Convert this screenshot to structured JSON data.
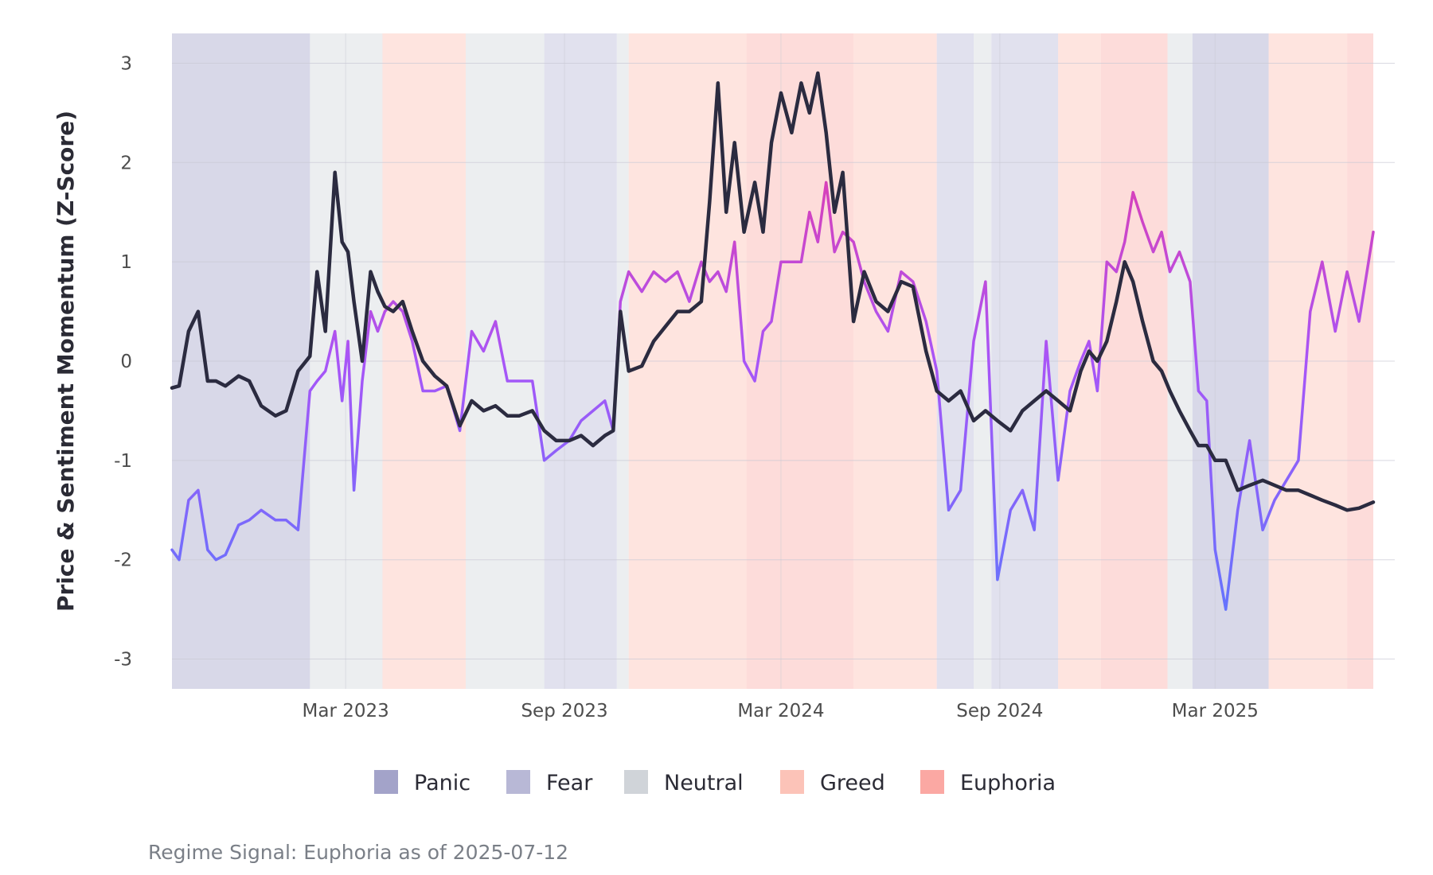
{
  "chart_data": {
    "type": "line",
    "title": "",
    "xlabel": "",
    "ylabel": "Price & Sentiment Momentum (Z-Score)",
    "ylim": [
      -3.3,
      3.3
    ],
    "xlim": [
      "2022-10-06",
      "2025-07-12"
    ],
    "y_ticks": [
      3,
      2,
      1,
      0,
      -1,
      -2,
      -3
    ],
    "y_tick_labels": [
      "3",
      "2",
      "1",
      "0",
      "-1",
      "-2",
      "-3"
    ],
    "x_ticks": [
      "2023-03-01",
      "2023-09-01",
      "2024-03-01",
      "2024-09-01",
      "2025-03-01"
    ],
    "x_tick_labels": [
      "Mar 2023",
      "Sep 2023",
      "Mar 2024",
      "Sep 2024",
      "Mar 2025"
    ],
    "grid": true,
    "legend_position": "bottom",
    "legend": [
      {
        "label": "Panic",
        "color": "#a3a3c9"
      },
      {
        "label": "Fear",
        "color": "#b8b8d6"
      },
      {
        "label": "Neutral",
        "color": "#d0d4d9"
      },
      {
        "label": "Greed",
        "color": "#fcc3b8"
      },
      {
        "label": "Euphoria",
        "color": "#fba8a3"
      }
    ],
    "caption": "Regime Signal: Euphoria as of 2025-07-12",
    "regime_bands": [
      {
        "start": "2022-10-06",
        "end": "2023-01-30",
        "regime": "Panic"
      },
      {
        "start": "2023-01-30",
        "end": "2023-04-01",
        "regime": "Neutral"
      },
      {
        "start": "2023-04-01",
        "end": "2023-06-10",
        "regime": "Greed"
      },
      {
        "start": "2023-06-10",
        "end": "2023-08-15",
        "regime": "Neutral"
      },
      {
        "start": "2023-08-15",
        "end": "2023-10-15",
        "regime": "Fear"
      },
      {
        "start": "2023-10-15",
        "end": "2023-10-25",
        "regime": "Neutral"
      },
      {
        "start": "2023-10-25",
        "end": "2024-02-01",
        "regime": "Greed"
      },
      {
        "start": "2024-02-01",
        "end": "2024-05-01",
        "regime": "Euphoria"
      },
      {
        "start": "2024-05-01",
        "end": "2024-07-10",
        "regime": "Greed"
      },
      {
        "start": "2024-07-10",
        "end": "2024-08-10",
        "regime": "Fear"
      },
      {
        "start": "2024-08-10",
        "end": "2024-08-25",
        "regime": "Neutral"
      },
      {
        "start": "2024-08-25",
        "end": "2024-10-20",
        "regime": "Fear"
      },
      {
        "start": "2024-10-20",
        "end": "2024-11-25",
        "regime": "Greed"
      },
      {
        "start": "2024-11-25",
        "end": "2025-01-20",
        "regime": "Euphoria"
      },
      {
        "start": "2025-01-20",
        "end": "2025-02-10",
        "regime": "Neutral"
      },
      {
        "start": "2025-02-10",
        "end": "2025-04-15",
        "regime": "Panic"
      },
      {
        "start": "2025-04-15",
        "end": "2025-06-20",
        "regime": "Greed"
      },
      {
        "start": "2025-06-20",
        "end": "2025-07-12",
        "regime": "Euphoria"
      }
    ],
    "series": [
      {
        "key": "price",
        "color": "#2b2b40",
        "x": [
          "2022-10-06",
          "2022-10-12",
          "2022-10-20",
          "2022-10-28",
          "2022-11-05",
          "2022-11-12",
          "2022-11-20",
          "2022-12-01",
          "2022-12-10",
          "2022-12-20",
          "2023-01-01",
          "2023-01-10",
          "2023-01-20",
          "2023-01-30",
          "2023-02-05",
          "2023-02-12",
          "2023-02-20",
          "2023-02-26",
          "2023-03-03",
          "2023-03-08",
          "2023-03-15",
          "2023-03-22",
          "2023-03-28",
          "2023-04-03",
          "2023-04-10",
          "2023-04-18",
          "2023-04-26",
          "2023-05-05",
          "2023-05-15",
          "2023-05-25",
          "2023-06-05",
          "2023-06-15",
          "2023-06-25",
          "2023-07-05",
          "2023-07-15",
          "2023-07-25",
          "2023-08-05",
          "2023-08-15",
          "2023-08-25",
          "2023-09-05",
          "2023-09-15",
          "2023-09-25",
          "2023-10-05",
          "2023-10-12",
          "2023-10-18",
          "2023-10-25",
          "2023-11-05",
          "2023-11-15",
          "2023-11-25",
          "2023-12-05",
          "2023-12-15",
          "2023-12-25",
          "2024-01-01",
          "2024-01-08",
          "2024-01-15",
          "2024-01-22",
          "2024-01-30",
          "2024-02-08",
          "2024-02-15",
          "2024-02-22",
          "2024-03-01",
          "2024-03-10",
          "2024-03-18",
          "2024-03-25",
          "2024-04-01",
          "2024-04-08",
          "2024-04-15",
          "2024-04-22",
          "2024-05-01",
          "2024-05-10",
          "2024-05-20",
          "2024-05-30",
          "2024-06-10",
          "2024-06-20",
          "2024-07-01",
          "2024-07-10",
          "2024-07-20",
          "2024-07-30",
          "2024-08-10",
          "2024-08-20",
          "2024-08-30",
          "2024-09-10",
          "2024-09-20",
          "2024-09-30",
          "2024-10-10",
          "2024-10-20",
          "2024-10-30",
          "2024-11-08",
          "2024-11-15",
          "2024-11-22",
          "2024-11-30",
          "2024-12-08",
          "2024-12-15",
          "2024-12-22",
          "2024-12-30",
          "2025-01-08",
          "2025-01-15",
          "2025-01-22",
          "2025-01-30",
          "2025-02-08",
          "2025-02-15",
          "2025-02-22",
          "2025-03-01",
          "2025-03-10",
          "2025-03-20",
          "2025-03-30",
          "2025-04-10",
          "2025-04-20",
          "2025-04-30",
          "2025-05-10",
          "2025-05-20",
          "2025-05-30",
          "2025-06-10",
          "2025-06-20",
          "2025-06-30",
          "2025-07-12"
        ],
        "y": [
          -0.27,
          -0.25,
          0.3,
          0.5,
          -0.2,
          -0.2,
          -0.25,
          -0.15,
          -0.2,
          -0.45,
          -0.55,
          -0.5,
          -0.1,
          0.05,
          0.9,
          0.3,
          1.9,
          1.2,
          1.1,
          0.6,
          0.0,
          0.9,
          0.7,
          0.55,
          0.5,
          0.6,
          0.3,
          0.0,
          -0.15,
          -0.25,
          -0.65,
          -0.4,
          -0.5,
          -0.45,
          -0.55,
          -0.55,
          -0.5,
          -0.7,
          -0.8,
          -0.8,
          -0.75,
          -0.85,
          -0.75,
          -0.7,
          0.5,
          -0.1,
          -0.05,
          0.2,
          0.35,
          0.5,
          0.5,
          0.6,
          1.6,
          2.8,
          1.5,
          2.2,
          1.3,
          1.8,
          1.3,
          2.2,
          2.7,
          2.3,
          2.8,
          2.5,
          2.9,
          2.3,
          1.5,
          1.9,
          0.4,
          0.9,
          0.6,
          0.5,
          0.8,
          0.75,
          0.1,
          -0.3,
          -0.4,
          -0.3,
          -0.6,
          -0.5,
          -0.6,
          -0.7,
          -0.5,
          -0.4,
          -0.3,
          -0.4,
          -0.5,
          -0.1,
          0.1,
          0.0,
          0.2,
          0.6,
          1.0,
          0.8,
          0.4,
          0.0,
          -0.1,
          -0.3,
          -0.5,
          -0.7,
          -0.85,
          -0.85,
          -1.0,
          -1.0,
          -1.3,
          -1.25,
          -1.2,
          -1.25,
          -1.3,
          -1.3,
          -1.35,
          -1.4,
          -1.45,
          -1.5,
          -1.48,
          -1.42
        ]
      },
      {
        "key": "sentiment",
        "color": "#a855f7",
        "x": [
          "2022-10-06",
          "2022-10-12",
          "2022-10-20",
          "2022-10-28",
          "2022-11-05",
          "2022-11-12",
          "2022-11-20",
          "2022-12-01",
          "2022-12-10",
          "2022-12-20",
          "2023-01-01",
          "2023-01-10",
          "2023-01-20",
          "2023-01-30",
          "2023-02-05",
          "2023-02-12",
          "2023-02-20",
          "2023-02-26",
          "2023-03-03",
          "2023-03-08",
          "2023-03-15",
          "2023-03-22",
          "2023-03-28",
          "2023-04-03",
          "2023-04-10",
          "2023-04-18",
          "2023-04-26",
          "2023-05-05",
          "2023-05-15",
          "2023-05-25",
          "2023-06-05",
          "2023-06-15",
          "2023-06-25",
          "2023-07-05",
          "2023-07-15",
          "2023-07-25",
          "2023-08-05",
          "2023-08-15",
          "2023-08-25",
          "2023-09-05",
          "2023-09-15",
          "2023-09-25",
          "2023-10-05",
          "2023-10-12",
          "2023-10-18",
          "2023-10-25",
          "2023-11-05",
          "2023-11-15",
          "2023-11-25",
          "2023-12-05",
          "2023-12-15",
          "2023-12-25",
          "2024-01-01",
          "2024-01-08",
          "2024-01-15",
          "2024-01-22",
          "2024-01-30",
          "2024-02-08",
          "2024-02-15",
          "2024-02-22",
          "2024-03-01",
          "2024-03-10",
          "2024-03-18",
          "2024-03-25",
          "2024-04-01",
          "2024-04-08",
          "2024-04-15",
          "2024-04-22",
          "2024-05-01",
          "2024-05-10",
          "2024-05-20",
          "2024-05-30",
          "2024-06-10",
          "2024-06-20",
          "2024-07-01",
          "2024-07-10",
          "2024-07-20",
          "2024-07-30",
          "2024-08-10",
          "2024-08-20",
          "2024-08-30",
          "2024-09-10",
          "2024-09-20",
          "2024-09-30",
          "2024-10-10",
          "2024-10-20",
          "2024-10-30",
          "2024-11-08",
          "2024-11-15",
          "2024-11-22",
          "2024-11-30",
          "2024-12-08",
          "2024-12-15",
          "2024-12-22",
          "2024-12-30",
          "2025-01-08",
          "2025-01-15",
          "2025-01-22",
          "2025-01-30",
          "2025-02-08",
          "2025-02-15",
          "2025-02-22",
          "2025-03-01",
          "2025-03-10",
          "2025-03-20",
          "2025-03-30",
          "2025-04-10",
          "2025-04-20",
          "2025-04-30",
          "2025-05-10",
          "2025-05-20",
          "2025-05-30",
          "2025-06-10",
          "2025-06-20",
          "2025-06-30",
          "2025-07-12"
        ],
        "y": [
          -1.9,
          -2.0,
          -1.4,
          -1.3,
          -1.9,
          -2.0,
          -1.95,
          -1.65,
          -1.6,
          -1.5,
          -1.6,
          -1.6,
          -1.7,
          -0.3,
          -0.2,
          -0.1,
          0.3,
          -0.4,
          0.2,
          -1.3,
          -0.2,
          0.5,
          0.3,
          0.5,
          0.6,
          0.5,
          0.2,
          -0.3,
          -0.3,
          -0.25,
          -0.7,
          0.3,
          0.1,
          0.4,
          -0.2,
          -0.2,
          -0.2,
          -1.0,
          -0.9,
          -0.8,
          -0.6,
          -0.5,
          -0.4,
          -0.7,
          0.6,
          0.9,
          0.7,
          0.9,
          0.8,
          0.9,
          0.6,
          1.0,
          0.8,
          0.9,
          0.7,
          1.2,
          0.0,
          -0.2,
          0.3,
          0.4,
          1.0,
          1.0,
          1.0,
          1.5,
          1.2,
          1.8,
          1.1,
          1.3,
          1.2,
          0.8,
          0.5,
          0.3,
          0.9,
          0.8,
          0.4,
          -0.1,
          -1.5,
          -1.3,
          0.2,
          0.8,
          -2.2,
          -1.5,
          -1.3,
          -1.7,
          0.2,
          -1.2,
          -0.3,
          0.0,
          0.2,
          -0.3,
          1.0,
          0.9,
          1.2,
          1.7,
          1.4,
          1.1,
          1.3,
          0.9,
          1.1,
          0.8,
          -0.3,
          -0.4,
          -1.9,
          -2.5,
          -1.5,
          -0.8,
          -1.7,
          -1.4,
          -1.2,
          -1.0,
          0.5,
          1.0,
          0.3,
          0.9,
          0.4,
          1.3
        ]
      }
    ]
  }
}
